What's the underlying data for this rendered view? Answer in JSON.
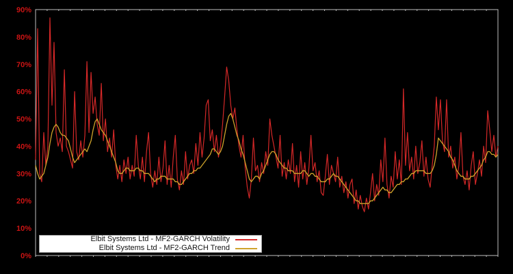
{
  "colors": {
    "background": "#000000",
    "plot_border": "#c0c0c0",
    "axis_label": "#cc1414",
    "volatility_line": "#d62828",
    "trend_line": "#cfa32b",
    "legend_background": "#ffffff",
    "legend_text": "#111111"
  },
  "chart_data": {
    "type": "line",
    "title": "",
    "xlabel": "",
    "ylabel": "",
    "ylim": [
      0,
      90
    ],
    "ytick_step": 10,
    "ytick_labels": [
      "0%",
      "10%",
      "20%",
      "30%",
      "40%",
      "50%",
      "60%",
      "70%",
      "80%",
      "90%"
    ],
    "grid": "off",
    "legend_position": "bottom-left",
    "x_count": 226,
    "series": [
      {
        "name": "Elbit Systems Ltd - MF2-GARCH Volatility",
        "color": "#d62828",
        "values": [
          35,
          83,
          30,
          27,
          45,
          33,
          40,
          87,
          55,
          78,
          45,
          40,
          43,
          38,
          68,
          40,
          38,
          35,
          32,
          60,
          38,
          35,
          42,
          36,
          44,
          71,
          45,
          67,
          52,
          58,
          48,
          44,
          63,
          42,
          50,
          38,
          43,
          36,
          46,
          33,
          28,
          33,
          27,
          35,
          30,
          36,
          28,
          33,
          29,
          44,
          33,
          28,
          36,
          27,
          38,
          45,
          30,
          25,
          31,
          26,
          36,
          27,
          32,
          42,
          26,
          33,
          25,
          36,
          44,
          28,
          24,
          31,
          26,
          38,
          28,
          33,
          35,
          30,
          41,
          33,
          45,
          36,
          43,
          55,
          57,
          42,
          46,
          38,
          44,
          36,
          40,
          48,
          58,
          69,
          64,
          55,
          50,
          54,
          46,
          40,
          36,
          44,
          32,
          25,
          21,
          28,
          43,
          31,
          33,
          27,
          34,
          30,
          38,
          33,
          50,
          44,
          40,
          36,
          32,
          44,
          29,
          34,
          28,
          35,
          30,
          41,
          27,
          33,
          25,
          38,
          28,
          34,
          26,
          32,
          44,
          31,
          34,
          27,
          31,
          23,
          22,
          29,
          37,
          26,
          33,
          30,
          27,
          36,
          25,
          29,
          23,
          27,
          21,
          26,
          28,
          19,
          24,
          17,
          22,
          18,
          16,
          21,
          17,
          23,
          30,
          20,
          26,
          22,
          35,
          27,
          43,
          26,
          21,
          29,
          25,
          38,
          28,
          35,
          26,
          61,
          33,
          45,
          31,
          36,
          28,
          40,
          30,
          34,
          42,
          29,
          36,
          28,
          25,
          33,
          40,
          58,
          46,
          57,
          42,
          38,
          57,
          36,
          40,
          32,
          36,
          28,
          33,
          45,
          29,
          26,
          31,
          24,
          33,
          38,
          26,
          30,
          35,
          29,
          40,
          34,
          53,
          46,
          38,
          44,
          36,
          40
        ]
      },
      {
        "name": "Elbit Systems Ltd - MF2-GARCH Trend",
        "color": "#cfa32b",
        "values": [
          33,
          30,
          28,
          29,
          30,
          33,
          36,
          41,
          45,
          47,
          48,
          47,
          45,
          44,
          44,
          43,
          42,
          39,
          36,
          34,
          35,
          36,
          37,
          38,
          39,
          38,
          40,
          42,
          46,
          49,
          50,
          48,
          46,
          45,
          44,
          42,
          40,
          38,
          36,
          34,
          31,
          30,
          30,
          31,
          32,
          32,
          31,
          31,
          31,
          32,
          32,
          31,
          31,
          30,
          30,
          30,
          29,
          28,
          27,
          28,
          28,
          29,
          29,
          29,
          28,
          28,
          28,
          28,
          27,
          27,
          26,
          26,
          27,
          28,
          29,
          30,
          30,
          31,
          31,
          32,
          32,
          33,
          34,
          35,
          36,
          37,
          39,
          39,
          38,
          37,
          38,
          40,
          44,
          48,
          51,
          52,
          50,
          47,
          44,
          42,
          39,
          37,
          34,
          31,
          28,
          27,
          28,
          29,
          29,
          28,
          30,
          31,
          33,
          35,
          37,
          38,
          38,
          37,
          35,
          34,
          33,
          32,
          32,
          31,
          31,
          31,
          30,
          30,
          30,
          30,
          31,
          31,
          30,
          29,
          30,
          30,
          29,
          29,
          28,
          27,
          27,
          27,
          28,
          28,
          29,
          30,
          29,
          29,
          28,
          27,
          26,
          25,
          24,
          23,
          22,
          21,
          20,
          20,
          19,
          19,
          19,
          19,
          19,
          20,
          20,
          21,
          22,
          23,
          24,
          25,
          24,
          24,
          23,
          23,
          24,
          25,
          26,
          26,
          27,
          27,
          28,
          28,
          29,
          30,
          30,
          31,
          31,
          31,
          31,
          31,
          30,
          30,
          30,
          31,
          33,
          37,
          43,
          42,
          41,
          40,
          39,
          38,
          36,
          35,
          33,
          31,
          30,
          29,
          29,
          28,
          28,
          28,
          29,
          29,
          30,
          31,
          32,
          33,
          35,
          36,
          38,
          38,
          37,
          37,
          36,
          37
        ]
      }
    ]
  }
}
